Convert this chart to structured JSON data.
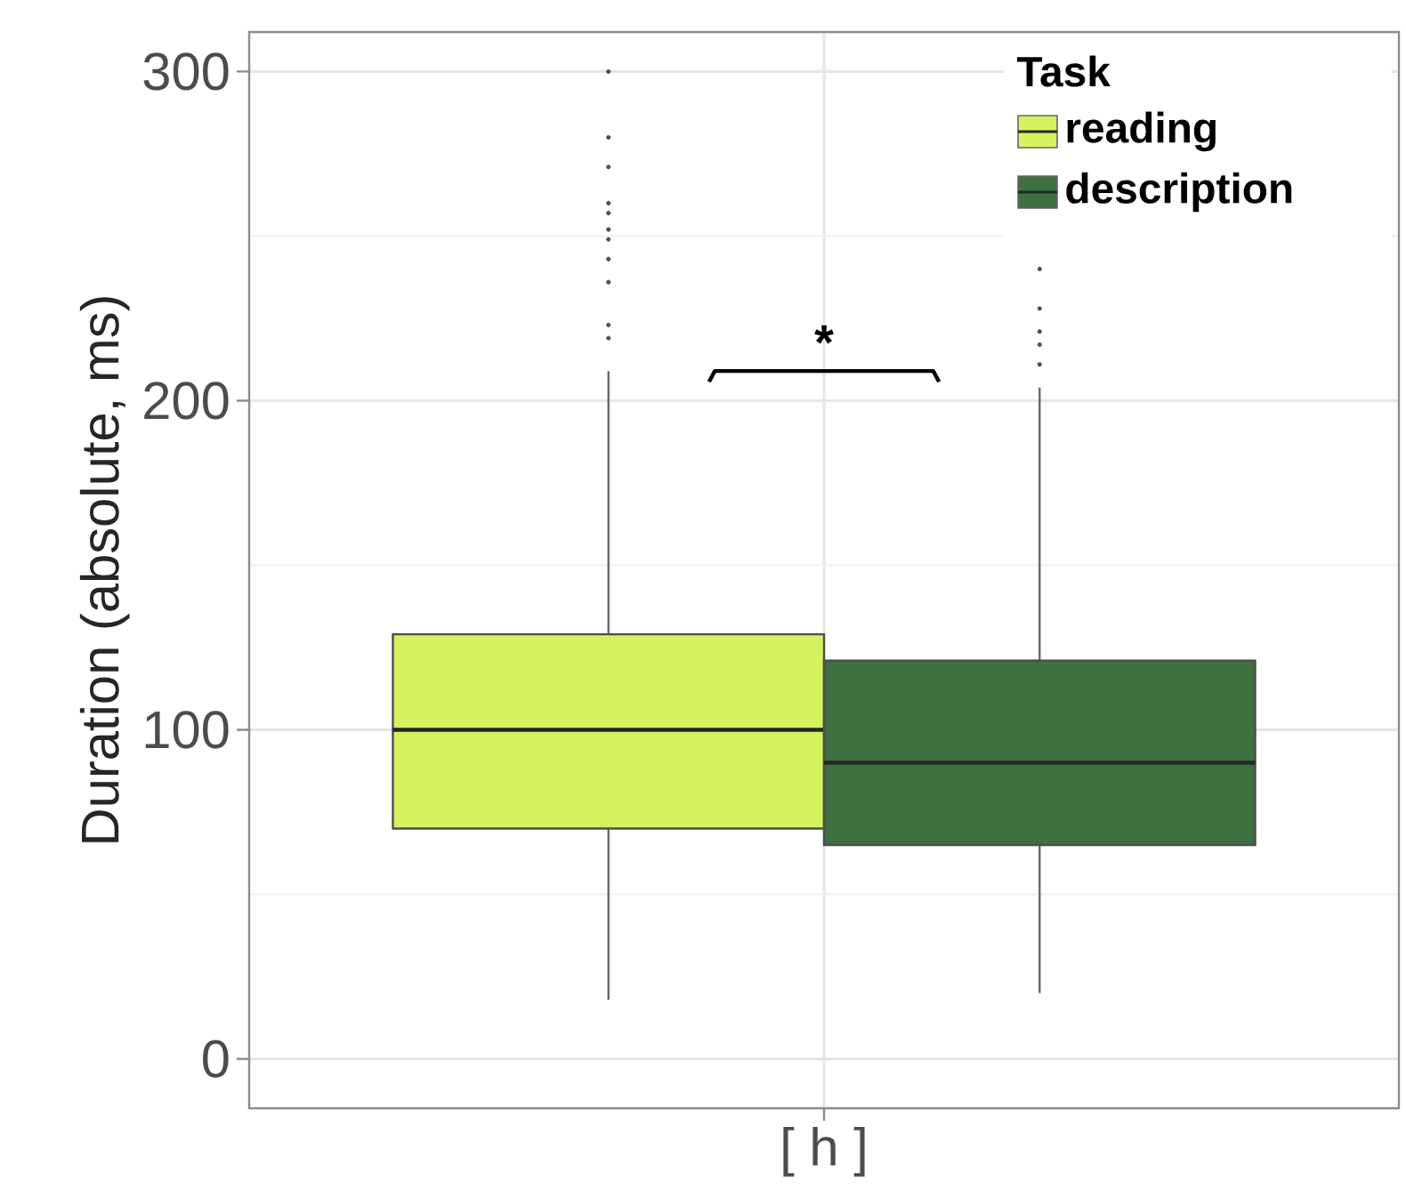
{
  "chart_data": {
    "type": "box",
    "ylabel": "Duration (absolute, ms)",
    "legend_title": "Task",
    "legend": "top right",
    "grid": true,
    "categories": [
      "[ h ]"
    ],
    "series": [
      {
        "name": "reading",
        "color": "#d4f25e",
        "boxes": [
          {
            "low": 18,
            "q1": 70,
            "median": 100,
            "q3": 129,
            "high": 209,
            "outliers": [
              219,
              223,
              236,
              243,
              249,
              252,
              257,
              260,
              271,
              280,
              300
            ]
          }
        ]
      },
      {
        "name": "description",
        "color": "#3f703f",
        "boxes": [
          {
            "low": 20,
            "q1": 65,
            "median": 90,
            "q3": 121,
            "high": 204,
            "outliers": [
              211,
              217,
              221,
              228,
              240
            ]
          }
        ]
      }
    ],
    "ylim": [
      -15,
      312
    ],
    "yticks": [
      0,
      100,
      200,
      300
    ],
    "annotations": [
      "*"
    ]
  }
}
